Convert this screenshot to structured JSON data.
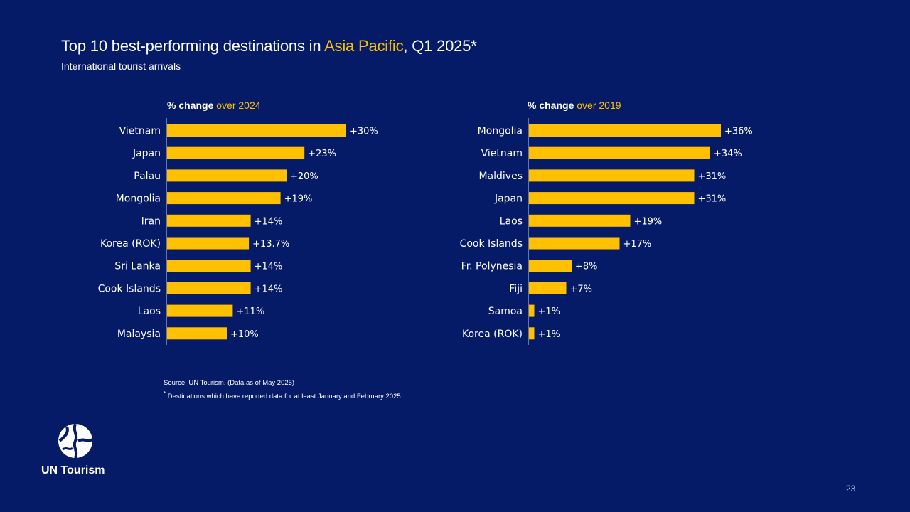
{
  "header": {
    "title_pre": "Top 10 best-performing destinations in ",
    "title_highlight": "Asia Pacific",
    "title_post": ", Q1 2025*",
    "subtitle": "International tourist arrivals"
  },
  "colors": {
    "background": "#051b67",
    "accent": "#ffc000",
    "bar": "#ffc000",
    "text": "#ffffff"
  },
  "panels": [
    {
      "head_pre": "% change ",
      "head_highlight": "over 2024"
    },
    {
      "head_pre": "% change ",
      "head_highlight": "over 2019"
    }
  ],
  "chart_data": [
    {
      "type": "bar",
      "orientation": "horizontal",
      "title": "% change over 2024",
      "categories": [
        "Vietnam",
        "Japan",
        "Palau",
        "Mongolia",
        "Iran",
        "Korea (ROK)",
        "Sri Lanka",
        "Cook Islands",
        "Laos",
        "Malaysia"
      ],
      "values": [
        30,
        23,
        20,
        19,
        14,
        13.7,
        14,
        14,
        11,
        10
      ],
      "labels": [
        "+30%",
        "+23%",
        "+20%",
        "+19%",
        "+14%",
        "+13.7%",
        "+14%",
        "+14%",
        "+11%",
        "+10%"
      ],
      "xlim": [
        0,
        45
      ]
    },
    {
      "type": "bar",
      "orientation": "horizontal",
      "title": "% change over 2019",
      "categories": [
        "Mongolia",
        "Vietnam",
        "Maldives",
        "Japan",
        "Laos",
        "Cook Islands",
        "Fr. Polynesia",
        "Fiji",
        "Samoa",
        "Korea (ROK)"
      ],
      "values": [
        36,
        34,
        31,
        31,
        19,
        17,
        8,
        7,
        1,
        1
      ],
      "labels": [
        "+36%",
        "+34%",
        "+31%",
        "+31%",
        "+19%",
        "+17%",
        "+8%",
        "+7%",
        "+1%",
        "+1%"
      ],
      "xlim": [
        0,
        45
      ]
    }
  ],
  "footer": {
    "source": "Source: UN Tourism. (Data as of May 2025)",
    "footnote_star": "*",
    "footnote": " Destinations which have reported data for at least January and February 2025",
    "brand": "UN Tourism",
    "page_number": "23"
  }
}
